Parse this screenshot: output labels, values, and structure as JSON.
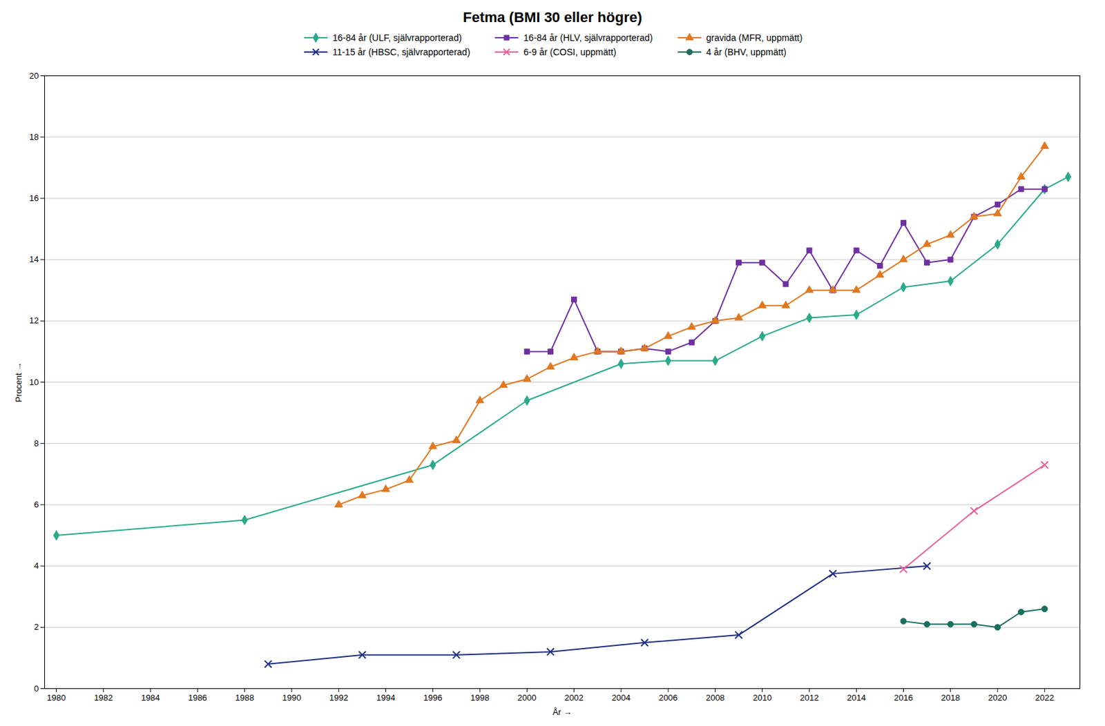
{
  "chart_data": {
    "type": "line",
    "title": "Fetma (BMI 30 eller högre)",
    "xlabel": "År",
    "ylabel": "Procent",
    "xlim": [
      1979.5,
      2023.5
    ],
    "ylim": [
      0,
      20
    ],
    "xticks": [
      1980,
      1982,
      1984,
      1986,
      1988,
      1990,
      1992,
      1994,
      1996,
      1998,
      2000,
      2002,
      2004,
      2006,
      2008,
      2010,
      2012,
      2014,
      2016,
      2018,
      2020,
      2022
    ],
    "yticks": [
      0,
      2,
      4,
      6,
      8,
      10,
      12,
      14,
      16,
      18,
      20
    ],
    "grid": "y",
    "legend": "top",
    "series": [
      {
        "name": "16-84 år (ULF, självrapporterad)",
        "color": "#2aaa8a",
        "marker": "diamond",
        "x": [
          1980,
          1988,
          1996,
          2000,
          2004,
          2006,
          2008,
          2010,
          2012,
          2014,
          2016,
          2018,
          2020,
          2022,
          2023
        ],
        "values": [
          5.0,
          5.5,
          7.3,
          9.4,
          10.6,
          10.7,
          10.7,
          11.5,
          12.1,
          12.2,
          13.1,
          13.3,
          14.5,
          16.3,
          16.7
        ]
      },
      {
        "name": "16-84 år (HLV, självrapporterad)",
        "color": "#7030a0",
        "marker": "square",
        "x": [
          2000,
          2001,
          2002,
          2003,
          2004,
          2005,
          2006,
          2007,
          2008,
          2009,
          2010,
          2011,
          2012,
          2013,
          2014,
          2015,
          2016,
          2017,
          2018,
          2019,
          2020,
          2021,
          2022
        ],
        "values": [
          11.0,
          11.0,
          12.7,
          11.0,
          11.0,
          11.1,
          11.0,
          11.3,
          12.0,
          13.9,
          13.9,
          13.2,
          14.3,
          13.0,
          14.3,
          13.8,
          15.2,
          13.9,
          14.0,
          15.4,
          15.8,
          16.3,
          16.3
        ]
      },
      {
        "name": "gravida (MFR, uppmätt)",
        "color": "#e07820",
        "marker": "triangle",
        "x": [
          1992,
          1993,
          1994,
          1995,
          1996,
          1997,
          1998,
          1999,
          2000,
          2001,
          2002,
          2003,
          2004,
          2005,
          2006,
          2007,
          2008,
          2009,
          2010,
          2011,
          2012,
          2013,
          2014,
          2015,
          2016,
          2017,
          2018,
          2019,
          2020,
          2021,
          2022
        ],
        "values": [
          6.0,
          6.3,
          6.5,
          6.8,
          7.9,
          8.1,
          9.4,
          9.9,
          10.1,
          10.5,
          10.8,
          11.0,
          11.0,
          11.1,
          11.5,
          11.8,
          12.0,
          12.1,
          12.5,
          12.5,
          13.0,
          13.0,
          13.0,
          13.5,
          14.0,
          14.5,
          14.8,
          15.4,
          15.5,
          16.7,
          17.7
        ]
      },
      {
        "name": "11-15 år (HBSC, självrapporterad)",
        "color": "#1f3080",
        "marker": "x",
        "x": [
          1989,
          1993,
          1997,
          2001,
          2005,
          2009,
          2013,
          2017
        ],
        "values": [
          0.8,
          1.1,
          1.1,
          1.2,
          1.5,
          1.75,
          3.75,
          4.0
        ]
      },
      {
        "name": "6-9 år (COSI, uppmätt)",
        "color": "#e8609a",
        "marker": "x",
        "x": [
          2016,
          2019,
          2022
        ],
        "values": [
          3.9,
          5.8,
          7.3
        ]
      },
      {
        "name": "4 år (BHV, uppmätt)",
        "color": "#1a6e5e",
        "marker": "circle",
        "x": [
          2016,
          2017,
          2018,
          2019,
          2020,
          2021,
          2022
        ],
        "values": [
          2.2,
          2.1,
          2.1,
          2.1,
          2.0,
          2.5,
          2.6
        ]
      }
    ]
  }
}
